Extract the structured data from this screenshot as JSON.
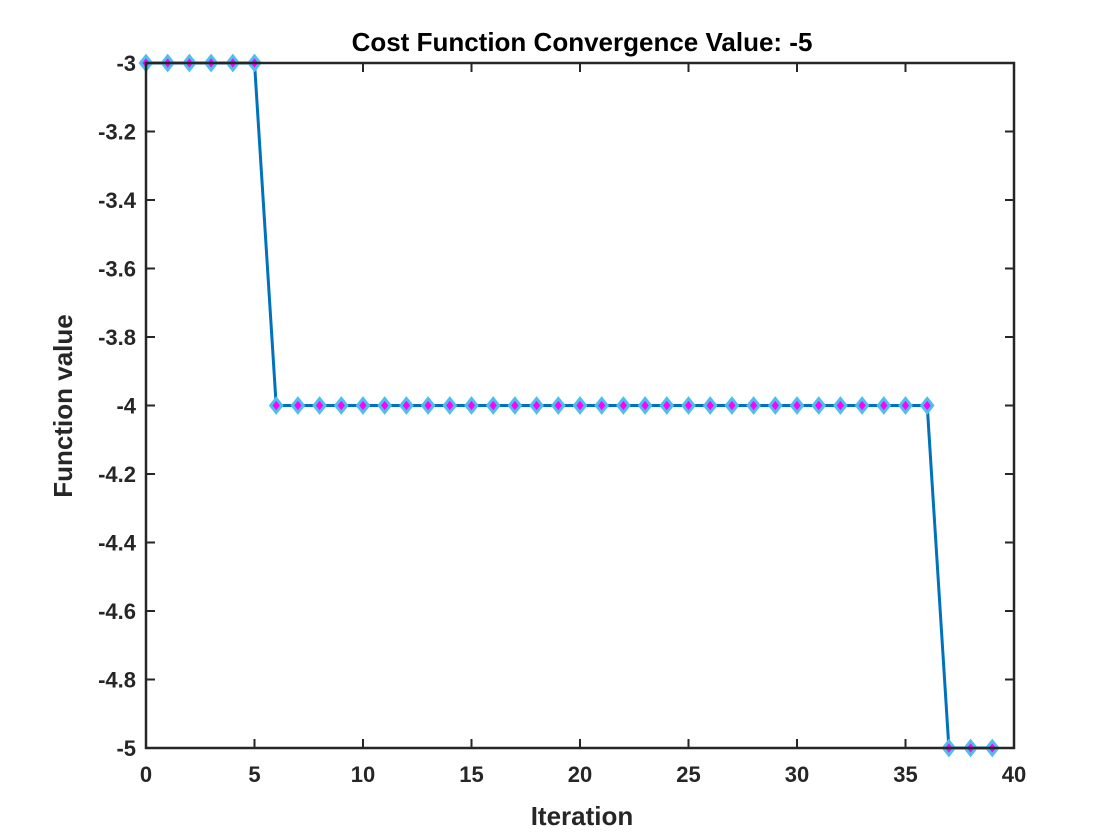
{
  "chart_data": {
    "type": "line",
    "title": "Cost Function Convergence Value: -5",
    "xlabel": "Iteration",
    "ylabel": "Function value",
    "xlim": [
      0,
      40
    ],
    "ylim": [
      -5,
      -3
    ],
    "xticks": [
      0,
      5,
      10,
      15,
      20,
      25,
      30,
      35,
      40
    ],
    "yticks": [
      -3,
      -3.2,
      -3.4,
      -3.6,
      -3.8,
      -4,
      -4.2,
      -4.4,
      -4.6,
      -4.8,
      -5
    ],
    "xtick_labels": [
      "0",
      "5",
      "10",
      "15",
      "20",
      "25",
      "30",
      "35",
      "40"
    ],
    "ytick_labels": [
      "-3",
      "-3.2",
      "-3.4",
      "-3.6",
      "-3.8",
      "-4",
      "-4.2",
      "-4.4",
      "-4.6",
      "-4.8",
      "-5"
    ],
    "grid": false,
    "series": [
      {
        "line_color": "#0072BD",
        "marker": "diamond",
        "marker_edge_color": "#4DBEEE",
        "marker_face_color": "#FF00FF",
        "x": [
          0,
          1,
          2,
          3,
          4,
          5,
          6,
          7,
          8,
          9,
          10,
          11,
          12,
          13,
          14,
          15,
          16,
          17,
          18,
          19,
          20,
          21,
          22,
          23,
          24,
          25,
          26,
          27,
          28,
          29,
          30,
          31,
          32,
          33,
          34,
          35,
          36,
          37,
          38,
          39
        ],
        "y": [
          -3,
          -3,
          -3,
          -3,
          -3,
          -3,
          -4,
          -4,
          -4,
          -4,
          -4,
          -4,
          -4,
          -4,
          -4,
          -4,
          -4,
          -4,
          -4,
          -4,
          -4,
          -4,
          -4,
          -4,
          -4,
          -4,
          -4,
          -4,
          -4,
          -4,
          -4,
          -4,
          -4,
          -4,
          -4,
          -4,
          -4,
          -5,
          -5,
          -5
        ]
      }
    ]
  }
}
